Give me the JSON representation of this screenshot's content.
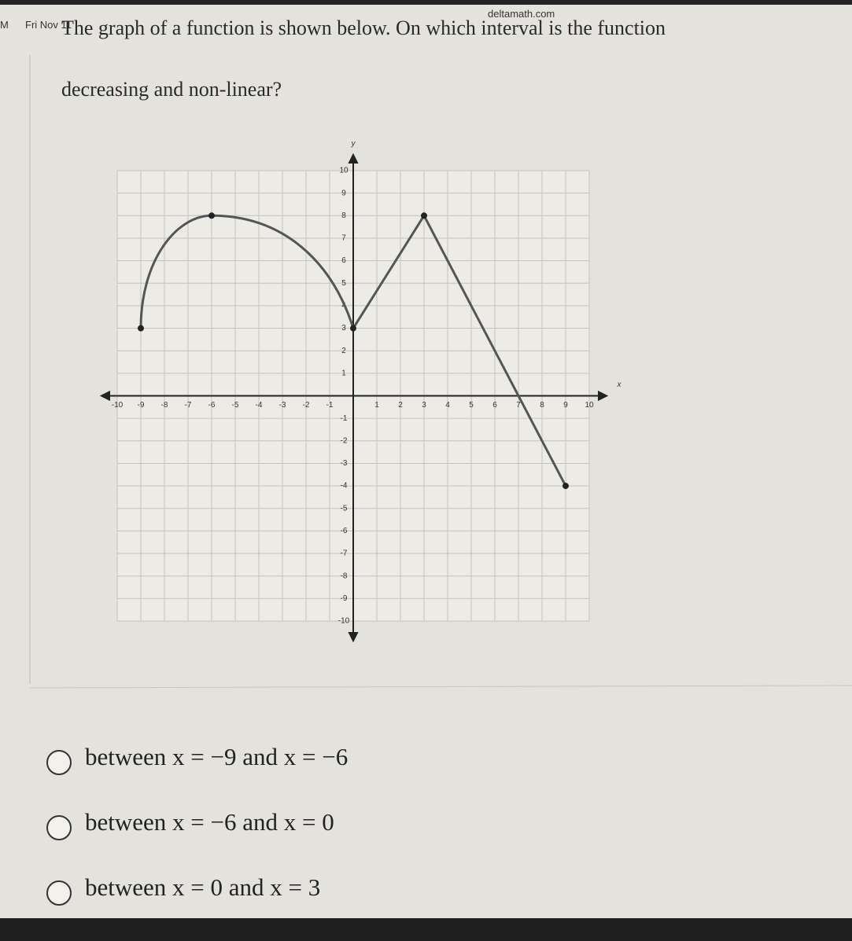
{
  "status_bar": {
    "time": "M",
    "date": "Fri Nov 11",
    "url": "deltamath.com"
  },
  "question": {
    "line1": "The graph of a function is shown below. On which interval is the function",
    "line2": "decreasing and non-linear?"
  },
  "graph": {
    "x_label": "x",
    "y_label": "y",
    "xlim": [
      -10,
      10
    ],
    "ylim": [
      -10,
      10
    ],
    "xticks": [
      -10,
      -9,
      -8,
      -7,
      -6,
      -5,
      -4,
      -3,
      -2,
      -1,
      1,
      2,
      3,
      4,
      5,
      6,
      7,
      8,
      9,
      10
    ],
    "yticks": [
      -10,
      -9,
      -8,
      -7,
      -6,
      -5,
      -4,
      -3,
      -2,
      -1,
      1,
      2,
      3,
      4,
      5,
      6,
      7,
      8,
      9,
      10
    ],
    "points": [
      {
        "x": -9,
        "y": 3
      },
      {
        "x": -6,
        "y": 8
      },
      {
        "x": 0,
        "y": 3
      },
      {
        "x": 3,
        "y": 8
      },
      {
        "x": 9,
        "y": -4
      }
    ]
  },
  "choices": [
    "between x = −9 and x = −6",
    "between x = −6 and x = 0",
    "between x = 0 and x = 3"
  ]
}
